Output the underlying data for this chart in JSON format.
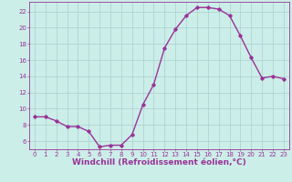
{
  "x": [
    0,
    1,
    2,
    3,
    4,
    5,
    6,
    7,
    8,
    9,
    10,
    11,
    12,
    13,
    14,
    15,
    16,
    17,
    18,
    19,
    20,
    21,
    22,
    23
  ],
  "y": [
    9.0,
    9.0,
    8.5,
    7.8,
    7.8,
    7.2,
    5.3,
    5.5,
    5.5,
    6.8,
    10.5,
    13.0,
    17.5,
    19.8,
    21.5,
    22.5,
    22.5,
    22.3,
    21.5,
    19.0,
    16.3,
    13.8,
    14.0,
    13.7
  ],
  "line_color": "#993399",
  "marker": "D",
  "marker_size": 1.8,
  "linewidth": 1.0,
  "xlabel": "Windchill (Refroidissement éolien,°C)",
  "xlabel_color": "#993399",
  "xlim": [
    -0.5,
    23.5
  ],
  "ylim": [
    5.0,
    23.2
  ],
  "yticks": [
    6,
    8,
    10,
    12,
    14,
    16,
    18,
    20,
    22
  ],
  "xticks": [
    0,
    1,
    2,
    3,
    4,
    5,
    6,
    7,
    8,
    9,
    10,
    11,
    12,
    13,
    14,
    15,
    16,
    17,
    18,
    19,
    20,
    21,
    22,
    23
  ],
  "grid_color": "#aacfcf",
  "background_color": "#cceee8",
  "tick_color": "#993399",
  "tick_fontsize": 5.0,
  "xlabel_fontsize": 6.5
}
